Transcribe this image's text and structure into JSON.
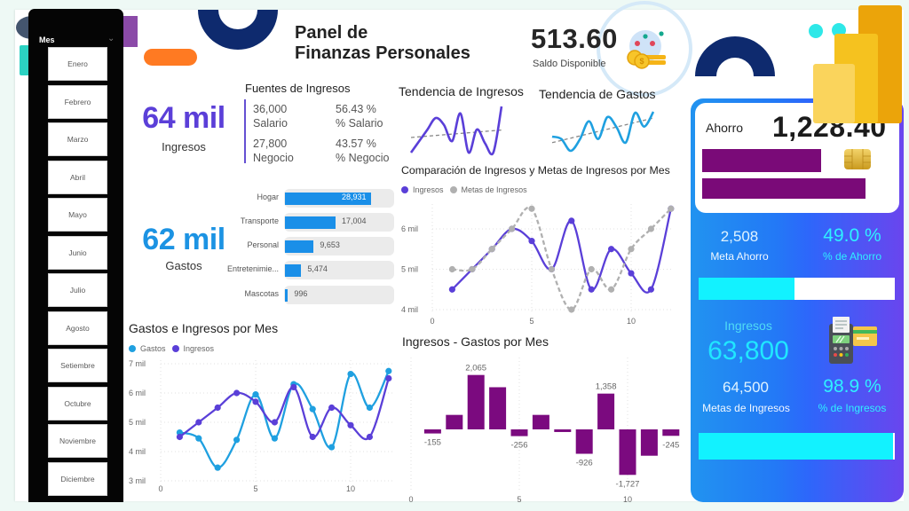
{
  "header": {
    "title_line1": "Panel de",
    "title_line2": "Finanzas Personales"
  },
  "slicer": {
    "label": "Mes",
    "items": [
      "Enero",
      "Febrero",
      "Marzo",
      "Abril",
      "Mayo",
      "Junio",
      "Julio",
      "Agosto",
      "Setiembre",
      "Octubre",
      "Noviembre",
      "Diciembre"
    ]
  },
  "saldo": {
    "value": "513.60",
    "label": "Saldo Disponible"
  },
  "ingresos_kpi": {
    "value": "64 mil",
    "label": "Ingresos"
  },
  "gastos_kpi": {
    "value": "62 mil",
    "label": "Gastos"
  },
  "fuentes": {
    "title": "Fuentes de Ingresos",
    "rows": [
      {
        "value": "36,000",
        "label": "Salario",
        "pct": "56.43 %",
        "pct_label": "% Salario"
      },
      {
        "value": "27,800",
        "label": "Negocio",
        "pct": "43.57 %",
        "pct_label": "% Negocio"
      }
    ]
  },
  "ahorro_card": {
    "label": "Ahorro",
    "value": "1,228.40",
    "meta_ahorro": "2,508",
    "meta_ahorro_label": "Meta Ahorro",
    "pct_ahorro": "49.0 %",
    "pct_ahorro_value": 49.0,
    "pct_ahorro_label": "% de Ahorro",
    "ingresos_label": "Ingresos",
    "ingresos_value": "63,800",
    "metas_ingresos": "64,500",
    "metas_ingresos_label": "Metas de Ingresos",
    "pct_ingresos": "98.9 %",
    "pct_ingresos_value": 98.9,
    "pct_ingresos_label": "% de Ingresos"
  },
  "colors": {
    "ingresos": "#5a3fd8",
    "gastos": "#1fa0e0",
    "metas": "#b0b0b0",
    "diferencia": "#7b0a7f",
    "gastos_bar": "#1a8fe8",
    "progress": "#12f2ff"
  },
  "chart_data": [
    {
      "type": "bar",
      "orientation": "horizontal",
      "title": "",
      "categories": [
        "Hogar",
        "Transporte",
        "Personal",
        "Entretenimie...",
        "Mascotas"
      ],
      "values": [
        28931,
        17004,
        9653,
        5474,
        996
      ],
      "value_labels": [
        "28,931",
        "17,004",
        "9,653",
        "5,474",
        "996"
      ]
    },
    {
      "type": "line",
      "title": "Tendencia de Ingresos",
      "x": [
        1,
        2,
        3,
        4,
        5,
        6,
        7,
        8,
        9,
        10,
        11,
        12
      ],
      "series": [
        {
          "name": "Ingresos",
          "values": [
            4500,
            5000,
            5500,
            6000,
            5700,
            5000,
            6200,
            4500,
            5500,
            4900,
            4500,
            6500
          ]
        }
      ],
      "trendline": true
    },
    {
      "type": "line",
      "title": "Tendencia de Gastos",
      "x": [
        1,
        2,
        3,
        4,
        5,
        6,
        7,
        8,
        9,
        10,
        11,
        12
      ],
      "series": [
        {
          "name": "Gastos",
          "values": [
            4650,
            4450,
            3450,
            4400,
            5950,
            4450,
            6300,
            5450,
            4150,
            6650,
            5500,
            6750
          ]
        }
      ],
      "trendline": true
    },
    {
      "type": "line",
      "title": "Comparación de Ingresos y Metas de Ingresos por Mes",
      "x": [
        1,
        2,
        3,
        4,
        5,
        6,
        7,
        8,
        9,
        10,
        11,
        12
      ],
      "series": [
        {
          "name": "Ingresos",
          "values": [
            4500,
            5000,
            5500,
            6000,
            5700,
            5000,
            6200,
            4500,
            5500,
            4900,
            4500,
            6500
          ]
        },
        {
          "name": "Metas de Ingresos",
          "values": [
            5000,
            5000,
            5500,
            6000,
            6500,
            5000,
            4000,
            5000,
            4500,
            5500,
            6000,
            6500
          ]
        }
      ],
      "xticks": [
        0,
        5,
        10
      ],
      "yticks": [
        4000,
        5000,
        6000
      ],
      "ytick_labels": [
        "4 mil",
        "5 mil",
        "6 mil"
      ],
      "ylim": [
        4000,
        6500
      ],
      "legend_position": "top-left",
      "grid": true
    },
    {
      "type": "line",
      "title": "Gastos e Ingresos por Mes",
      "x": [
        1,
        2,
        3,
        4,
        5,
        6,
        7,
        8,
        9,
        10,
        11,
        12
      ],
      "series": [
        {
          "name": "Gastos",
          "values": [
            4650,
            4450,
            3450,
            4400,
            5950,
            4450,
            6300,
            5450,
            4150,
            6650,
            5500,
            6750
          ]
        },
        {
          "name": "Ingresos",
          "values": [
            4500,
            5000,
            5500,
            6000,
            5700,
            5000,
            6200,
            4500,
            5500,
            4900,
            4500,
            6500
          ]
        }
      ],
      "xticks": [
        0,
        5,
        10
      ],
      "yticks": [
        3000,
        4000,
        5000,
        6000,
        7000
      ],
      "ytick_labels": [
        "3 mil",
        "4 mil",
        "5 mil",
        "6 mil",
        "7 mil"
      ],
      "ylim": [
        3000,
        7000
      ],
      "legend_position": "top-left",
      "grid": true
    },
    {
      "type": "bar",
      "title": "Ingresos - Gastos por Mes",
      "x": [
        1,
        2,
        3,
        4,
        5,
        6,
        7,
        8,
        9,
        10,
        11,
        12
      ],
      "values": [
        -155,
        550,
        2065,
        1600,
        -256,
        550,
        -100,
        -926,
        1358,
        -1727,
        -1000,
        -245
      ],
      "value_labels": [
        "-155",
        null,
        "2,065",
        null,
        "-256",
        null,
        null,
        "-926",
        "1,358",
        "-1,727",
        null,
        "-245"
      ],
      "xticks": [
        0,
        5,
        10
      ],
      "grid": true
    }
  ]
}
